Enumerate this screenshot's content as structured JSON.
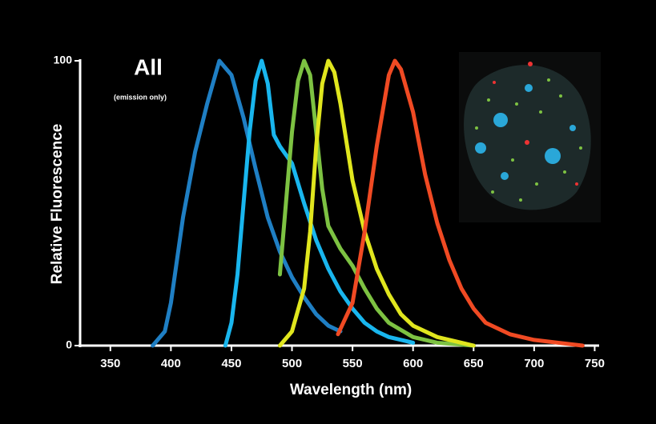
{
  "chart_data": {
    "type": "line",
    "title": "All",
    "subtitle": "(emission only)",
    "x_label": "Wavelength (nm)",
    "y_label": "Relative Fluorescence",
    "xlim": [
      325,
      755
    ],
    "ylim": [
      0,
      100
    ],
    "xticks": [
      350,
      400,
      450,
      500,
      550,
      600,
      650,
      700,
      750
    ],
    "yticks": [
      0,
      100
    ],
    "series": [
      {
        "color": "#1f7fc4",
        "x": [
          385,
          395,
          400,
          410,
          420,
          430,
          440,
          450,
          460,
          470,
          480,
          490,
          500,
          510,
          520,
          530,
          540
        ],
        "values": [
          0,
          5,
          15,
          45,
          68,
          85,
          100,
          95,
          80,
          62,
          45,
          33,
          24,
          17,
          11,
          7,
          5
        ]
      },
      {
        "color": "#19b6ee",
        "x": [
          445,
          450,
          455,
          460,
          465,
          470,
          475,
          480,
          485,
          490,
          500,
          510,
          520,
          530,
          540,
          550,
          560,
          570,
          580,
          600
        ],
        "values": [
          0,
          8,
          25,
          50,
          75,
          93,
          100,
          92,
          74,
          70,
          64,
          50,
          37,
          27,
          19,
          13,
          8,
          5,
          3,
          1
        ]
      },
      {
        "color": "#7dc242",
        "x": [
          490,
          495,
          500,
          505,
          510,
          515,
          520,
          525,
          530,
          540,
          550,
          560,
          570,
          580,
          600,
          620,
          650
        ],
        "values": [
          25,
          50,
          75,
          93,
          100,
          95,
          75,
          55,
          42,
          34,
          28,
          20,
          13,
          8,
          3,
          1,
          0
        ]
      },
      {
        "color": "#e0e61e",
        "x": [
          490,
          500,
          510,
          515,
          520,
          525,
          530,
          535,
          540,
          550,
          560,
          570,
          580,
          590,
          600,
          620,
          640,
          650
        ],
        "values": [
          0,
          5,
          20,
          40,
          70,
          92,
          100,
          96,
          85,
          58,
          40,
          27,
          18,
          11,
          7,
          3,
          1,
          0
        ]
      },
      {
        "color": "#f04a23",
        "x": [
          538,
          550,
          560,
          570,
          580,
          585,
          590,
          600,
          610,
          620,
          630,
          640,
          650,
          660,
          680,
          700,
          720,
          740
        ],
        "values": [
          4,
          15,
          40,
          70,
          95,
          100,
          97,
          82,
          60,
          43,
          30,
          20,
          13,
          8,
          4,
          2,
          1,
          0
        ]
      }
    ]
  }
}
